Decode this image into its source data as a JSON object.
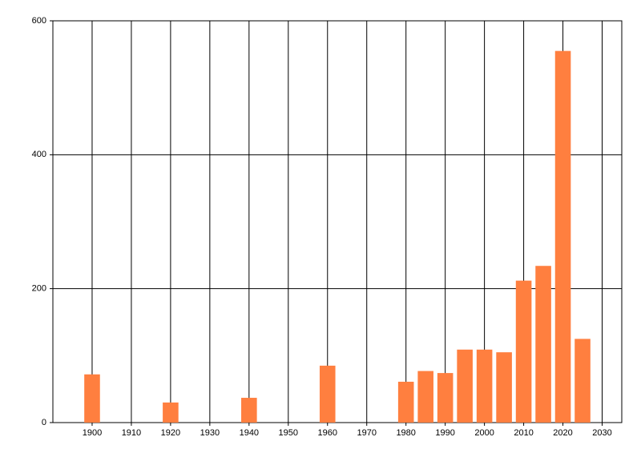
{
  "chart_data": {
    "type": "bar",
    "color": "#ff7f3f",
    "x": [
      1900,
      1920,
      1940,
      1960,
      1980,
      1985,
      1990,
      1995,
      2000,
      2005,
      2010,
      2015,
      2020,
      2025
    ],
    "values": [
      72,
      30,
      37,
      85,
      61,
      77,
      74,
      109,
      109,
      105,
      212,
      234,
      555,
      125
    ],
    "bar_width": 4,
    "xlim": [
      1890,
      2035
    ],
    "xticks": [
      1900,
      1910,
      1920,
      1930,
      1940,
      1950,
      1960,
      1970,
      1980,
      1990,
      2000,
      2010,
      2020,
      2030
    ],
    "ylim": [
      0,
      600
    ],
    "yticks": [
      0,
      200,
      400,
      600
    ],
    "grid": true
  }
}
